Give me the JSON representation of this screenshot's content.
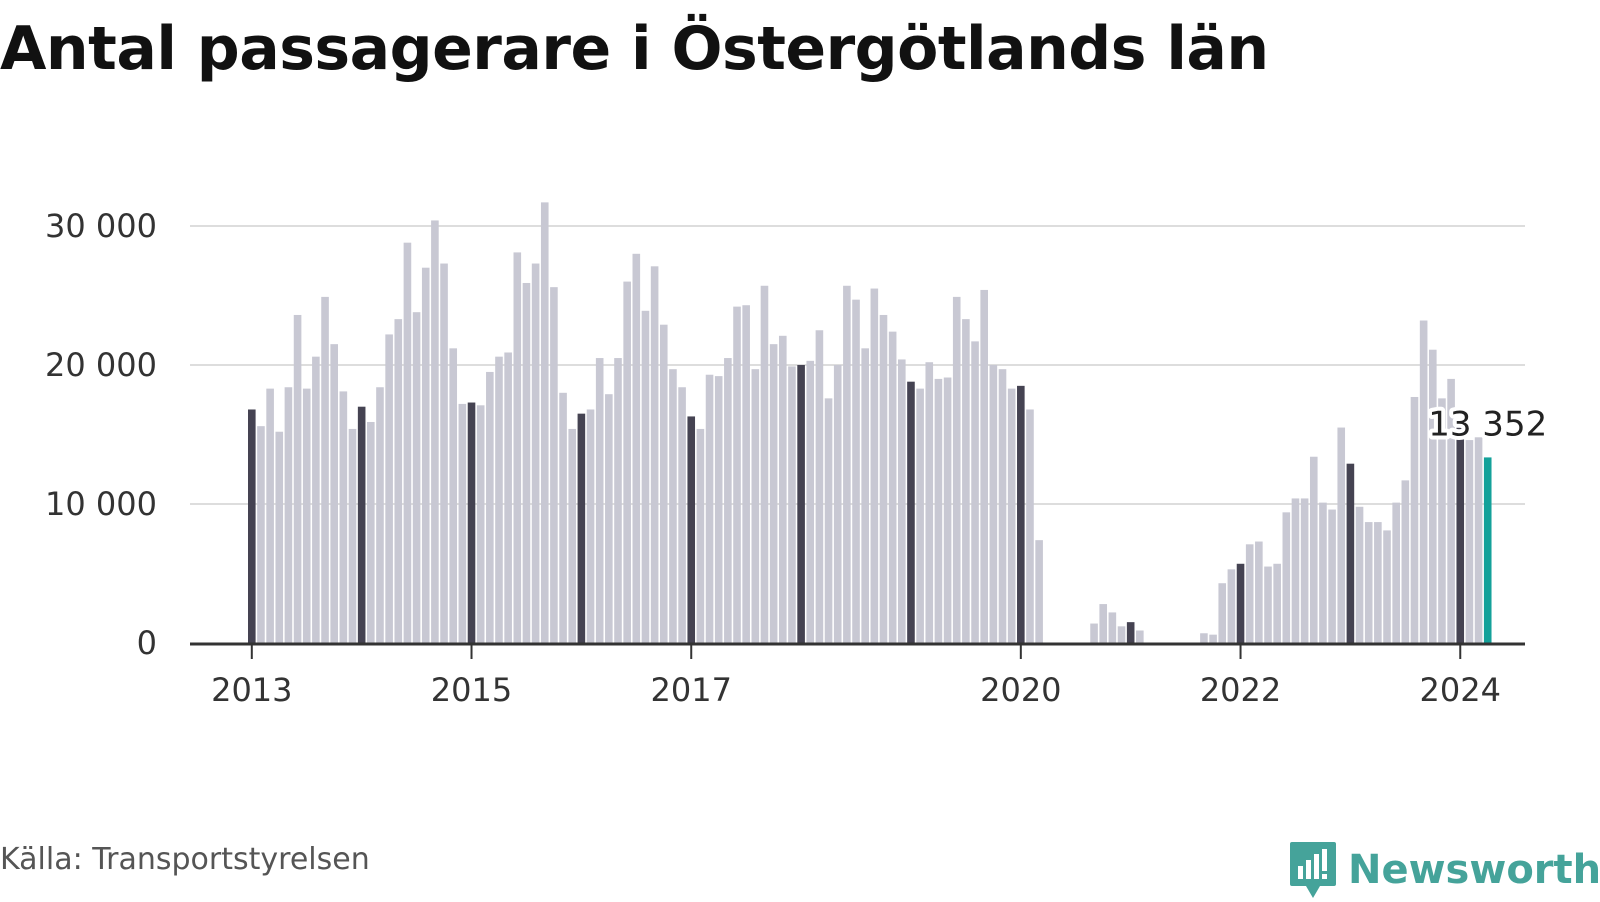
{
  "title": "Antal passagerare i Östergötlands län",
  "source": "Källa: Transportstyrelsen",
  "brand": {
    "name": "Newsworthy",
    "icon": "chart-bubble-icon",
    "color": "#45a39a"
  },
  "colors": {
    "bar": "#c8c8d3",
    "january_bar": "#454352",
    "latest_bar": "#14a19a",
    "grid": "#dddddd",
    "axis": "#333333"
  },
  "chart_data": {
    "type": "bar",
    "title": "Antal passagerare i Östergötlands län",
    "x_start": "2013-01",
    "x_ticks": [
      "2013",
      "2015",
      "2017",
      "2020",
      "2022",
      "2024"
    ],
    "y_ticks": [
      "0",
      "10 000",
      "20 000",
      "30 000"
    ],
    "ylim": [
      0,
      32000
    ],
    "grid": true,
    "highlight": "January bars dark; latest month teal",
    "annotation": {
      "text": "13 352",
      "value": 13352,
      "month": "2024-01"
    },
    "values": [
      16800,
      15600,
      18300,
      15200,
      18400,
      23600,
      18300,
      20600,
      24900,
      21500,
      18100,
      15400,
      17000,
      15900,
      18400,
      22200,
      23300,
      28800,
      23800,
      27000,
      30400,
      27300,
      21200,
      17200,
      17300,
      17100,
      19500,
      20600,
      20900,
      28100,
      25900,
      27300,
      31700,
      25600,
      18000,
      15400,
      16500,
      16800,
      20500,
      17900,
      20500,
      26000,
      28000,
      23900,
      27100,
      22900,
      19700,
      18400,
      16300,
      15400,
      19300,
      19200,
      20500,
      24200,
      24300,
      19700,
      25700,
      21500,
      22100,
      19900,
      20000,
      20300,
      22500,
      17600,
      20000,
      25700,
      24700,
      21200,
      25500,
      23600,
      22400,
      20400,
      18800,
      18300,
      20200,
      19000,
      19100,
      24900,
      23300,
      21700,
      25400,
      20000,
      19700,
      18300,
      18500,
      16800,
      7400,
      0,
      0,
      0,
      0,
      0,
      1400,
      2800,
      2200,
      1200,
      1500,
      900,
      0,
      0,
      0,
      0,
      0,
      0,
      700,
      600,
      4300,
      5300,
      5700,
      7100,
      7300,
      5500,
      5700,
      9400,
      10400,
      10400,
      13400,
      10100,
      9600,
      15500,
      12900,
      9800,
      8700,
      8700,
      8100,
      10100,
      11700,
      17700,
      23200,
      21100,
      17600,
      19000,
      16000,
      14600,
      14800,
      13352
    ]
  }
}
